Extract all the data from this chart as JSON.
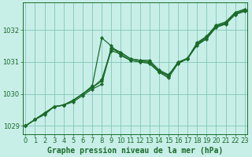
{
  "title": "Graphe pression niveau de la mer (hPa)",
  "bg_color": "#c8eee8",
  "grid_color": "#80c8b4",
  "line_color": "#1a6b2a",
  "marker_color": "#1a6b2a",
  "xlim": [
    -0.3,
    23.3
  ],
  "ylim": [
    1028.75,
    1032.85
  ],
  "yticks": [
    1029,
    1030,
    1031,
    1032
  ],
  "xticks": [
    0,
    1,
    2,
    3,
    4,
    5,
    6,
    7,
    8,
    9,
    10,
    11,
    12,
    13,
    14,
    15,
    16,
    17,
    18,
    19,
    20,
    21,
    22,
    23
  ],
  "series": [
    [
      1029.0,
      1029.2,
      1029.35,
      1029.6,
      1029.65,
      1029.75,
      1029.95,
      1030.15,
      1030.3,
      1031.45,
      1031.3,
      1031.1,
      1031.05,
      1031.05,
      1030.75,
      1030.6,
      1030.95,
      1031.1,
      1031.55,
      1031.75,
      1032.1,
      1032.2,
      1032.5,
      1032.6
    ],
    [
      1029.0,
      1029.2,
      1029.4,
      1029.6,
      1029.65,
      1029.8,
      1030.0,
      1030.2,
      1030.4,
      1031.35,
      1031.25,
      1031.05,
      1031.0,
      1031.0,
      1030.7,
      1030.55,
      1031.0,
      1031.1,
      1031.6,
      1031.8,
      1032.15,
      1032.25,
      1032.55,
      1032.65
    ],
    [
      1029.0,
      1029.2,
      1029.4,
      1029.6,
      1029.65,
      1029.8,
      1030.0,
      1030.2,
      1030.45,
      1031.4,
      1031.3,
      1031.1,
      1031.05,
      1031.0,
      1030.72,
      1030.58,
      1030.98,
      1031.12,
      1031.58,
      1031.78,
      1032.12,
      1032.22,
      1032.52,
      1032.62
    ]
  ],
  "series_spike": [
    1029.0,
    1029.2,
    1029.4,
    1029.6,
    1029.65,
    1029.8,
    1030.0,
    1030.25,
    1031.75,
    1031.5,
    1031.2,
    1031.05,
    1031.0,
    1030.95,
    1030.68,
    1030.5,
    1030.95,
    1031.1,
    1031.52,
    1031.72,
    1032.08,
    1032.18,
    1032.48,
    1032.58
  ],
  "xlabel_fontsize": 7.0,
  "tick_fontsize": 6.0,
  "linewidth": 0.9,
  "markersize": 2.2
}
